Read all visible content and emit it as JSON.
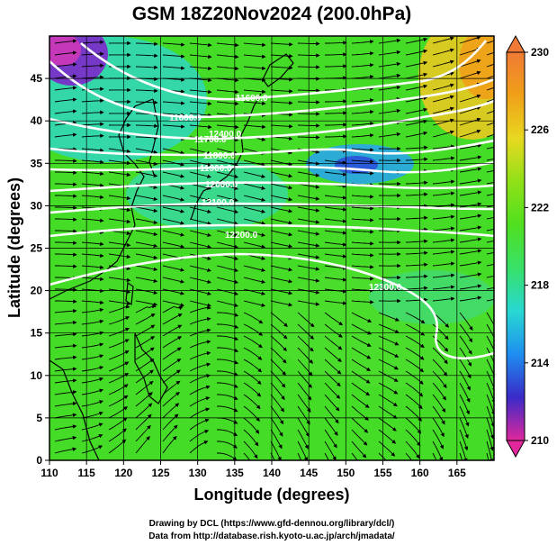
{
  "title": "GSM 18Z20Nov2024 (200.0hPa)",
  "map": {
    "xlabel": "Longitude (degrees)",
    "ylabel": "Latitude  (degrees)",
    "lon_range": [
      110,
      170
    ],
    "lat_range": [
      0,
      50
    ],
    "lon_ticks": [
      "110",
      "115",
      "120",
      "125",
      "130",
      "135",
      "140",
      "145",
      "150",
      "155",
      "160",
      "165"
    ],
    "lat_ticks": [
      "0",
      "5",
      "10",
      "15",
      "20",
      "25",
      "30",
      "35",
      "40",
      "45"
    ],
    "grid": true,
    "field": "temperature (color shading) with wind streamlines and height contours"
  },
  "colorbar": {
    "min": 210,
    "max": 230,
    "labels": [
      "230",
      "226",
      "222",
      "218",
      "214",
      "210"
    ],
    "colors": [
      "#e0289c",
      "#3a2ac8",
      "#1e8ef0",
      "#28d8d2",
      "#38e068",
      "#50e020",
      "#90e018",
      "#e8d820",
      "#f0a018",
      "#f07a36"
    ]
  },
  "contours": {
    "color": "#ffffff",
    "labels": [
      "11600.0",
      "11600.0",
      "11700.0",
      "11800.0",
      "11900.0",
      "12000.0",
      "12100.0",
      "12200.0",
      "12300.0",
      "12400.0"
    ]
  },
  "credits": {
    "line1": "Drawing by DCL (https://www.gfd-dennou.org/library/dcl/)",
    "line2": "Data from http://database.rish.kyoto-u.ac.jp/arch/jmadata/"
  }
}
